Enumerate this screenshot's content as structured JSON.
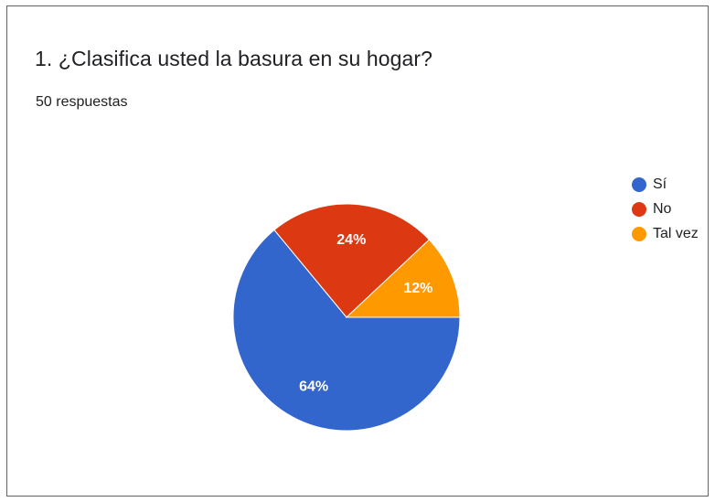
{
  "question": {
    "title": "1. ¿Clasifica usted la basura en su hogar?",
    "responses": "50 respuestas"
  },
  "chart_data": {
    "type": "pie",
    "title": "1. ¿Clasifica usted la basura en su hogar?",
    "categories": [
      "Sí",
      "No",
      "Tal vez"
    ],
    "values": [
      64,
      24,
      12
    ],
    "labels": [
      "64%",
      "24%",
      "12%"
    ],
    "colors": [
      "#3366cc",
      "#dc3912",
      "#ff9900"
    ],
    "legend_position": "right"
  }
}
